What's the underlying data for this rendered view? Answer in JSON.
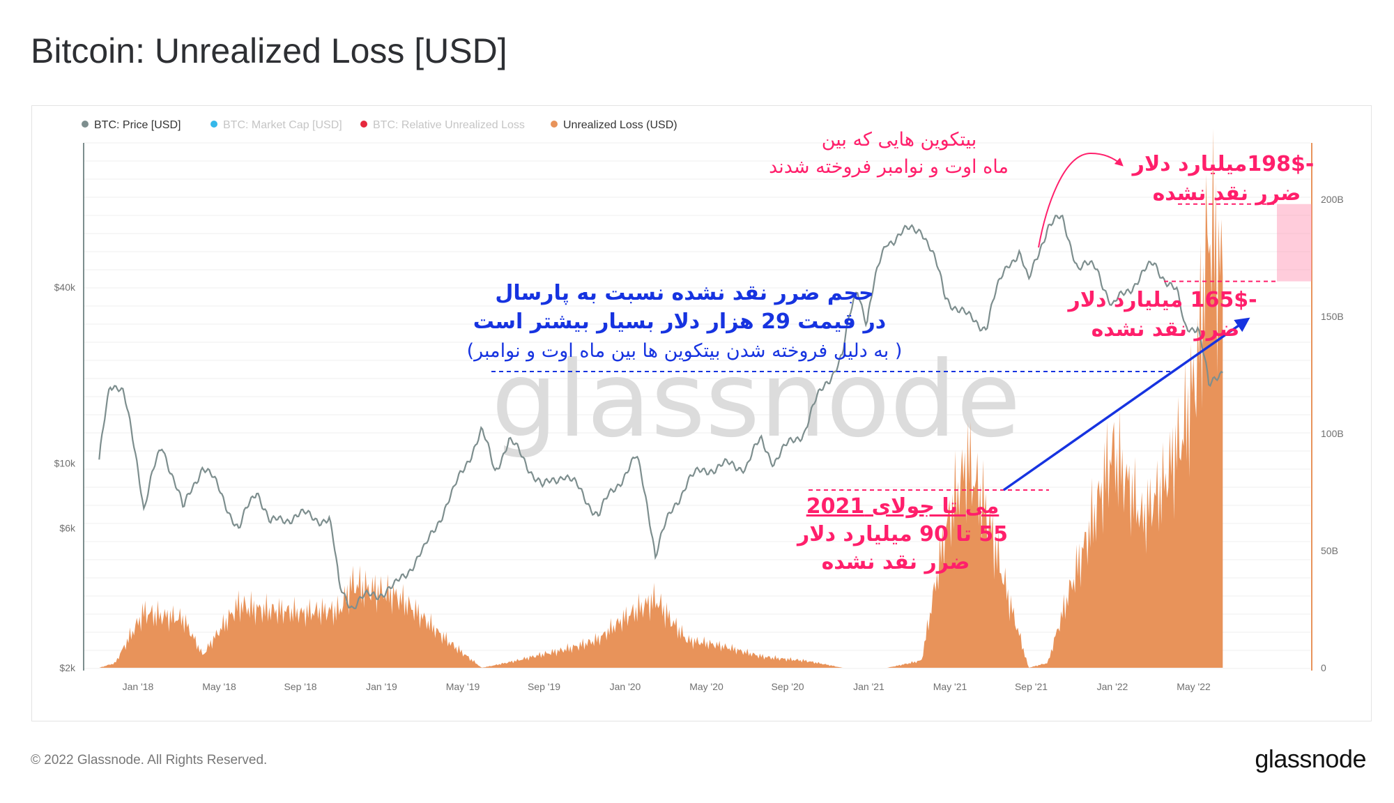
{
  "page": {
    "title": "Bitcoin: Unrealized Loss [USD]",
    "footer": "© 2022 Glassnode. All Rights Reserved.",
    "brand": "glassnode",
    "watermark": "glassnode"
  },
  "colors": {
    "price": "#7d8e8e",
    "loss": "#e8935a",
    "market_cap": "#35b8ea",
    "relative_loss": "#e6283d",
    "pink": "#ff1f6b",
    "blue": "#1633e0"
  },
  "legend": [
    {
      "label": "BTC: Price [USD]",
      "color": "#7d8e8e",
      "active": true
    },
    {
      "label": "BTC: Market Cap [USD]",
      "color": "#35b8ea",
      "active": false
    },
    {
      "label": "BTC: Relative Unrealized Loss",
      "color": "#e6283d",
      "active": false
    },
    {
      "label": "Unrealized Loss (USD)",
      "color": "#e8935a",
      "active": true
    }
  ],
  "annotations": {
    "top_note_line1": "بیتکوین هایی که بین",
    "top_note_line2": "ماه اوت و نوامبر فروخته شدند",
    "peak_label_line1": "-198$میلیارد دلار",
    "peak_label_line2": "ضرر نقد نشده",
    "current_label_line1": "-165$ میلیارد دلار",
    "current_label_line2": "ضرر نقد نشده",
    "blue_line1": "حجم ضرر نقد نشده نسبت به پارسال",
    "blue_line2": "در قیمت 29 هزار دلار بسیار بیشتر است",
    "blue_line3": "( به دلیل فروخته شدن بیتکوین ها  بین ماه اوت و نوامبر)",
    "may_line1": "می تا جولای 2021",
    "may_line2": "55 تا 90 میلیارد دلار",
    "may_line3": "ضرر نقد نشده"
  },
  "chart_data": {
    "type": "line+area",
    "x_tick_labels": [
      "Jan '18",
      "May '18",
      "Sep '18",
      "Jan '19",
      "May '19",
      "Sep '19",
      "Jan '20",
      "May '20",
      "Sep '20",
      "Jan '21",
      "May '21",
      "Sep '21",
      "Jan '22",
      "May '22"
    ],
    "y_left_tick_labels": [
      "$40k",
      "$10k",
      "$6k",
      "$2k"
    ],
    "y_left_scale": "log",
    "y_left_ticks": [
      40000,
      10000,
      6000,
      2000
    ],
    "y_right_tick_labels": [
      "200B",
      "150B",
      "100B",
      "50B",
      "0"
    ],
    "y_right_ticks": [
      200,
      150,
      100,
      50,
      0
    ],
    "y_right_unit": "B USD",
    "grid": true,
    "series": [
      {
        "name": "BTC: Price [USD]",
        "axis": "left",
        "x": [
          "2017-12-01",
          "2017-12-17",
          "2018-01-06",
          "2018-02-06",
          "2018-03-05",
          "2018-04-06",
          "2018-05-05",
          "2018-06-28",
          "2018-07-25",
          "2018-08-14",
          "2018-09-20",
          "2018-11-10",
          "2018-11-25",
          "2018-12-15",
          "2019-01-15",
          "2019-02-15",
          "2019-04-02",
          "2019-05-15",
          "2019-06-26",
          "2019-07-16",
          "2019-08-06",
          "2019-09-26",
          "2019-10-26",
          "2019-12-18",
          "2020-02-13",
          "2020-03-12",
          "2020-03-13",
          "2020-04-29",
          "2020-06-01",
          "2020-07-26",
          "2020-08-17",
          "2020-09-05",
          "2020-10-21",
          "2020-11-24",
          "2020-12-17",
          "2021-01-08",
          "2021-01-22",
          "2021-02-21",
          "2021-03-13",
          "2021-04-14",
          "2021-05-19",
          "2021-06-22",
          "2021-07-20",
          "2021-08-22",
          "2021-09-07",
          "2021-09-21",
          "2021-10-20",
          "2021-11-10",
          "2021-12-04",
          "2022-01-01",
          "2022-01-24",
          "2022-03-28",
          "2022-05-01",
          "2022-05-12",
          "2022-06-01",
          "2022-06-18",
          "2022-07-10"
        ],
        "values": [
          10000,
          19000,
          17000,
          7000,
          11500,
          6800,
          9800,
          5900,
          8300,
          6200,
          6600,
          6400,
          3800,
          3300,
          3600,
          3700,
          5000,
          8000,
          12800,
          9400,
          11800,
          8200,
          9400,
          6600,
          10300,
          4900,
          5000,
          8800,
          9600,
          9800,
          12000,
          10300,
          13000,
          19000,
          23000,
          40000,
          30500,
          58000,
          61000,
          63500,
          37000,
          31500,
          29800,
          49000,
          52500,
          40500,
          64000,
          68000,
          47000,
          47500,
          34000,
          47500,
          38000,
          29500,
          30000,
          18000,
          21500
        ]
      },
      {
        "name": "Unrealized Loss (USD)",
        "axis": "right",
        "x": [
          "2017-12-01",
          "2017-12-25",
          "2018-02-06",
          "2018-04-06",
          "2018-05-05",
          "2018-06-28",
          "2018-08-14",
          "2018-10-01",
          "2018-11-25",
          "2018-12-15",
          "2019-02-15",
          "2019-04-02",
          "2019-06-26",
          "2019-08-20",
          "2019-12-18",
          "2020-03-13",
          "2020-04-29",
          "2020-08-17",
          "2020-10-21",
          "2020-12-17",
          "2021-02-21",
          "2021-04-14",
          "2021-05-19",
          "2021-06-22",
          "2021-07-20",
          "2021-08-22",
          "2021-09-21",
          "2021-10-20",
          "2021-12-04",
          "2022-01-24",
          "2022-03-10",
          "2022-04-10",
          "2022-05-12",
          "2022-06-01",
          "2022-06-18",
          "2022-07-10"
        ],
        "values": [
          0,
          2,
          25,
          20,
          5,
          28,
          25,
          22,
          25,
          38,
          30,
          20,
          0,
          3,
          12,
          30,
          12,
          5,
          3,
          0,
          0,
          3,
          55,
          90,
          70,
          30,
          0,
          2,
          45,
          95,
          60,
          75,
          105,
          138,
          198,
          165
        ]
      }
    ],
    "highlights": {
      "peak_unrealized_loss": 198,
      "current_unrealized_loss": 165,
      "may_jul_2021_range": [
        55,
        90
      ],
      "price_reference": 29000
    }
  }
}
